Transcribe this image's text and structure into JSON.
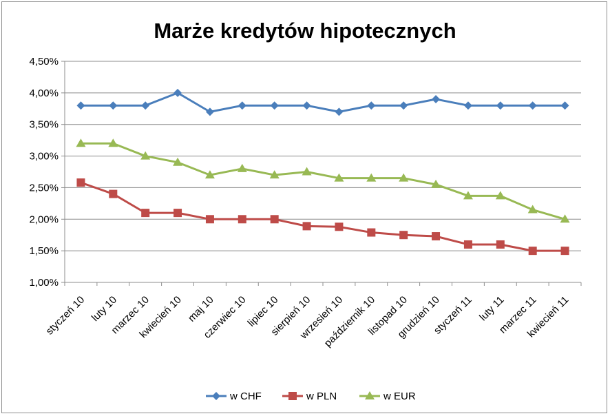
{
  "chart_data": {
    "type": "line",
    "title": "Marże kredytów hipotecznych",
    "xlabel": "",
    "ylabel": "",
    "categories": [
      "styczeń 10",
      "luty 10",
      "marzec 10",
      "kwiecień 10",
      "maj 10",
      "czerwiec 10",
      "lipiec 10",
      "sierpień 10",
      "wrzesień 10",
      "październik 10",
      "listopad 10",
      "grudzień 10",
      "styczeń 11",
      "luty 11",
      "marzec 11",
      "kwiecień 11"
    ],
    "ylim": [
      1.0,
      4.5
    ],
    "yticks": [
      1.0,
      1.5,
      2.0,
      2.5,
      3.0,
      3.5,
      4.0,
      4.5
    ],
    "ytick_labels": [
      "1,00%",
      "1,50%",
      "2,00%",
      "2,50%",
      "3,00%",
      "3,50%",
      "4,00%",
      "4,50%"
    ],
    "grid": true,
    "legend_position": "bottom",
    "series": [
      {
        "name": "w CHF",
        "color": "#4a7ebb",
        "marker": "diamond",
        "values": [
          3.8,
          3.8,
          3.8,
          4.0,
          3.7,
          3.8,
          3.8,
          3.8,
          3.7,
          3.8,
          3.8,
          3.9,
          3.8,
          3.8,
          3.8,
          3.8
        ]
      },
      {
        "name": "w PLN",
        "color": "#be4b48",
        "marker": "square",
        "values": [
          2.58,
          2.4,
          2.1,
          2.1,
          2.0,
          2.0,
          2.0,
          1.89,
          1.88,
          1.79,
          1.75,
          1.73,
          1.6,
          1.6,
          1.5,
          1.5
        ]
      },
      {
        "name": "w EUR",
        "color": "#98b954",
        "marker": "triangle",
        "values": [
          3.2,
          3.2,
          3.0,
          2.9,
          2.7,
          2.8,
          2.7,
          2.75,
          2.65,
          2.65,
          2.65,
          2.55,
          2.37,
          2.37,
          2.15,
          2.0
        ]
      }
    ]
  }
}
